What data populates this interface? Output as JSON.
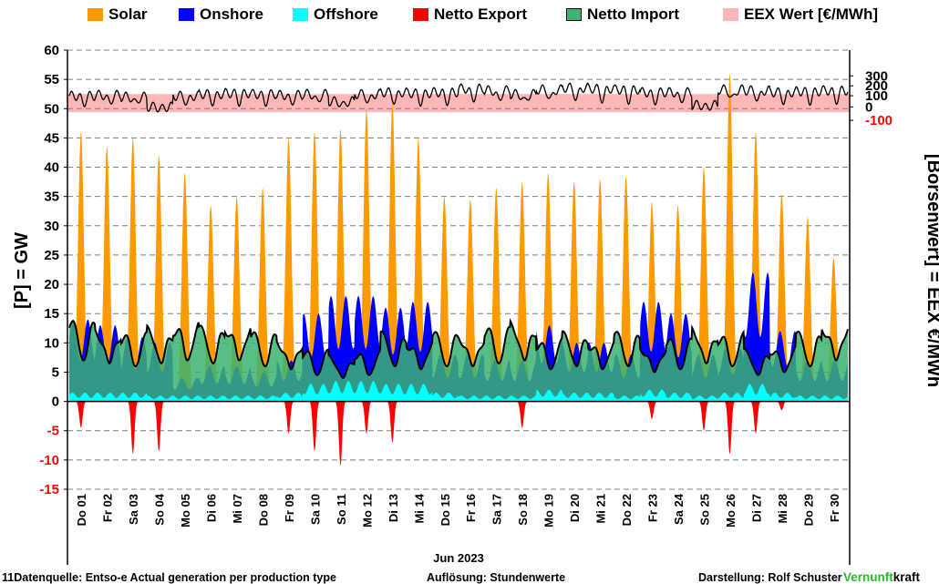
{
  "legend": [
    {
      "label": "Solar",
      "color": "#ff9900"
    },
    {
      "label": "Onshore",
      "color": "#0000ff"
    },
    {
      "label": "Offshore",
      "color": "#00ffff"
    },
    {
      "label": "Netto Export",
      "color": "#ff0000"
    },
    {
      "label": "Netto Import",
      "color": "#3cb371"
    },
    {
      "label": "EEX Wert [€/MWh]",
      "color": "#ffb6b6"
    }
  ],
  "footer": {
    "source": "11Datenquelle: Entso-e  Actual generation per production type",
    "resolution": "Auflösung: Stundenwerte",
    "author": "Darstellung:  Rolf Schuster",
    "brand_part1": "Vernunft",
    "brand_part2": "kraft"
  },
  "chart_data": {
    "type": "area",
    "xlabel": "Jun 2023",
    "ylabel": "[P] = GW",
    "y2label": "[Börsenwert] = EEX   €/MWh",
    "ylim": [
      -15,
      60
    ],
    "yticks": [
      60,
      55,
      50,
      45,
      40,
      35,
      30,
      25,
      20,
      15,
      10,
      5,
      0,
      -5,
      -10,
      -15
    ],
    "y2ticks": [
      300,
      200,
      100,
      0,
      -100
    ],
    "grid": true,
    "categories": [
      "Do 01",
      "Fr 02",
      "Sa 03",
      "So 04",
      "Mo 05",
      "Di 06",
      "Mi 07",
      "Do 08",
      "Fr 09",
      "Sa 10",
      "So 11",
      "Mo 12",
      "Di 13",
      "Mi 14",
      "Do 15",
      "Fr 16",
      "Sa 17",
      "So 18",
      "Mo 19",
      "Di 20",
      "Mi 21",
      "Do 22",
      "Fr 23",
      "Sa 24",
      "So 25",
      "Mo 26",
      "Di 27",
      "Mi 28",
      "Do 29",
      "Fr 30"
    ],
    "series": [
      {
        "name": "Solar",
        "type": "peak_per_day_GW",
        "values": [
          46,
          43.5,
          45,
          42,
          39,
          33.5,
          35,
          36.5,
          45,
          46,
          46.5,
          50,
          51,
          45,
          35,
          34.5,
          36.5,
          37.5,
          39,
          37.5,
          38,
          38.5,
          34,
          33.5,
          40,
          56,
          46,
          35.5,
          31.5,
          24.5
        ]
      },
      {
        "name": "Onshore",
        "type": "mean_level_GW",
        "values": [
          14,
          13,
          11,
          10,
          4,
          6,
          6,
          5,
          7,
          15,
          18,
          18,
          16,
          17,
          8,
          8,
          7,
          7,
          13,
          10,
          10,
          8,
          17,
          15,
          8,
          9,
          22,
          12,
          7,
          7
        ]
      },
      {
        "name": "Offshore",
        "type": "mean_level_GW",
        "values": [
          1.5,
          1.5,
          1.5,
          1,
          1,
          1,
          1,
          1,
          1.5,
          3,
          3.5,
          3.5,
          3,
          3,
          1.5,
          1,
          1,
          1,
          2,
          1.5,
          1.5,
          1,
          2,
          1.5,
          1,
          1.5,
          3,
          1.5,
          1,
          1
        ]
      },
      {
        "name": "Netto Export",
        "type": "min_per_day_GW",
        "values": [
          -4.5,
          0,
          -9,
          -8.5,
          0,
          0,
          0,
          0,
          -5.5,
          -8.5,
          -11,
          -5.5,
          -7,
          0,
          0,
          0,
          0,
          -4.5,
          0,
          0,
          0,
          0,
          -3,
          0,
          -5,
          -9,
          -5.5,
          -1.5,
          0,
          0
        ]
      },
      {
        "name": "Netto Import",
        "type": "max_per_day_GW",
        "values": [
          14,
          13,
          12,
          13,
          14,
          13,
          14,
          12,
          11,
          9,
          8,
          9,
          12,
          11,
          12,
          12,
          13,
          14,
          11,
          12,
          11,
          12,
          10,
          11,
          13,
          12,
          9,
          10,
          12,
          14
        ]
      },
      {
        "name": "EEX Wert [€/MWh]",
        "type": "mean_daily_EUR",
        "values": [
          90,
          95,
          85,
          30,
          90,
          100,
          105,
          100,
          95,
          100,
          60,
          100,
          110,
          105,
          110,
          130,
          120,
          100,
          125,
          135,
          130,
          125,
          110,
          110,
          40,
          125,
          120,
          110,
          115,
          120
        ]
      }
    ]
  }
}
